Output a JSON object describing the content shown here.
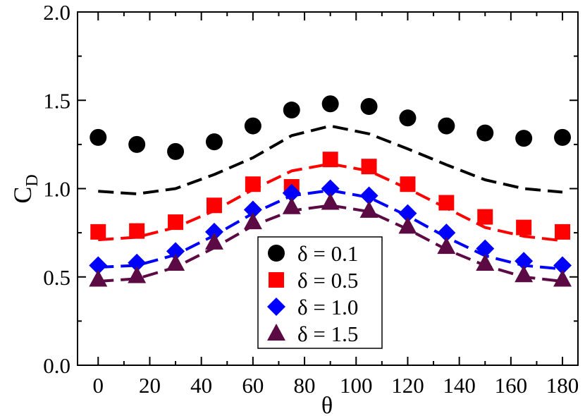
{
  "chart_data": {
    "type": "scatter",
    "xlabel": "θ",
    "ylabel": "C",
    "ylabel_sub": "D",
    "xlim": [
      -8,
      186
    ],
    "ylim": [
      0.0,
      2.0
    ],
    "xticks": [
      0,
      20,
      40,
      60,
      80,
      100,
      120,
      140,
      160,
      180
    ],
    "yticks": [
      0.0,
      0.5,
      1.0,
      1.5,
      2.0
    ],
    "ytick_labels": [
      "0.0",
      "0.5",
      "1.0",
      "1.5",
      "2.0"
    ],
    "grid": false,
    "legend_position": "bottom-center",
    "x": [
      0,
      15,
      30,
      45,
      60,
      75,
      90,
      105,
      120,
      135,
      150,
      165,
      180
    ],
    "series": [
      {
        "name": "δ = 0.1",
        "marker": "circle",
        "color": "#000000",
        "points": [
          1.29,
          1.25,
          1.21,
          1.265,
          1.355,
          1.445,
          1.48,
          1.465,
          1.4,
          1.355,
          1.315,
          1.285,
          1.29
        ],
        "line": [
          0.985,
          0.97,
          1.0,
          1.08,
          1.175,
          1.3,
          1.355,
          1.31,
          1.225,
          1.135,
          1.05,
          1.0,
          0.98
        ]
      },
      {
        "name": "δ = 0.5",
        "marker": "square",
        "color": "#ff0000",
        "points": [
          0.755,
          0.76,
          0.81,
          0.905,
          1.025,
          1.01,
          1.165,
          1.125,
          1.025,
          0.92,
          0.84,
          0.78,
          0.755
        ],
        "line": [
          0.71,
          0.725,
          0.78,
          0.875,
          0.995,
          1.1,
          1.14,
          1.1,
          1.0,
          0.89,
          0.78,
          0.73,
          0.705
        ]
      },
      {
        "name": "δ = 1.0",
        "marker": "diamond",
        "color": "#0000ff",
        "points": [
          0.565,
          0.58,
          0.645,
          0.755,
          0.88,
          0.975,
          1.0,
          0.96,
          0.86,
          0.75,
          0.66,
          0.59,
          0.565
        ],
        "line": [
          0.555,
          0.565,
          0.625,
          0.735,
          0.86,
          0.96,
          0.99,
          0.95,
          0.845,
          0.725,
          0.62,
          0.565,
          0.545
        ]
      },
      {
        "name": "δ = 1.5",
        "marker": "triangle",
        "color": "#5c0a44",
        "points": [
          0.485,
          0.505,
          0.575,
          0.695,
          0.81,
          0.895,
          0.92,
          0.875,
          0.785,
          0.67,
          0.575,
          0.51,
          0.485
        ],
        "line": [
          0.475,
          0.49,
          0.555,
          0.665,
          0.79,
          0.875,
          0.905,
          0.87,
          0.77,
          0.655,
          0.565,
          0.5,
          0.475
        ]
      }
    ]
  }
}
